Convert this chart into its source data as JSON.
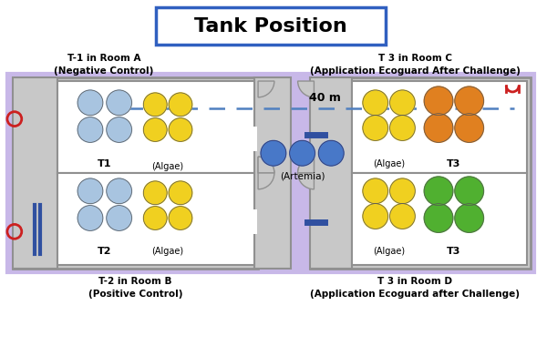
{
  "title": "Tank Position",
  "title_fontsize": 16,
  "label_top_left": "T-1 in Room A\n(Negative Control)",
  "label_top_right": "T 3 in Room C\n(Application Ecoguard After Challenge)",
  "label_bot_left": "T-2 in Room B\n(Positive Control)",
  "label_bot_right": "T 3 in Room D\n(Application Ecoguard after Challenge)",
  "distance_label": "40 m",
  "artemia_label": "(Artemia)",
  "t1_label": "T1",
  "t2_label": "T2",
  "t3_label": "T3",
  "algae_label": "(Algae)",
  "lavender": "#c8b8e8",
  "room_gray": "#c8c8c8",
  "room_white": "#ffffff",
  "light_blue": "#a8c4e0",
  "yellow": "#f0d020",
  "orange": "#e08020",
  "green": "#50b030",
  "blue_artemia": "#4878c8",
  "dashed_color": "#5080c0",
  "red_color": "#cc2020",
  "blue_pipe": "#3050a0",
  "gray_border": "#909090",
  "title_border": "#3060c0"
}
